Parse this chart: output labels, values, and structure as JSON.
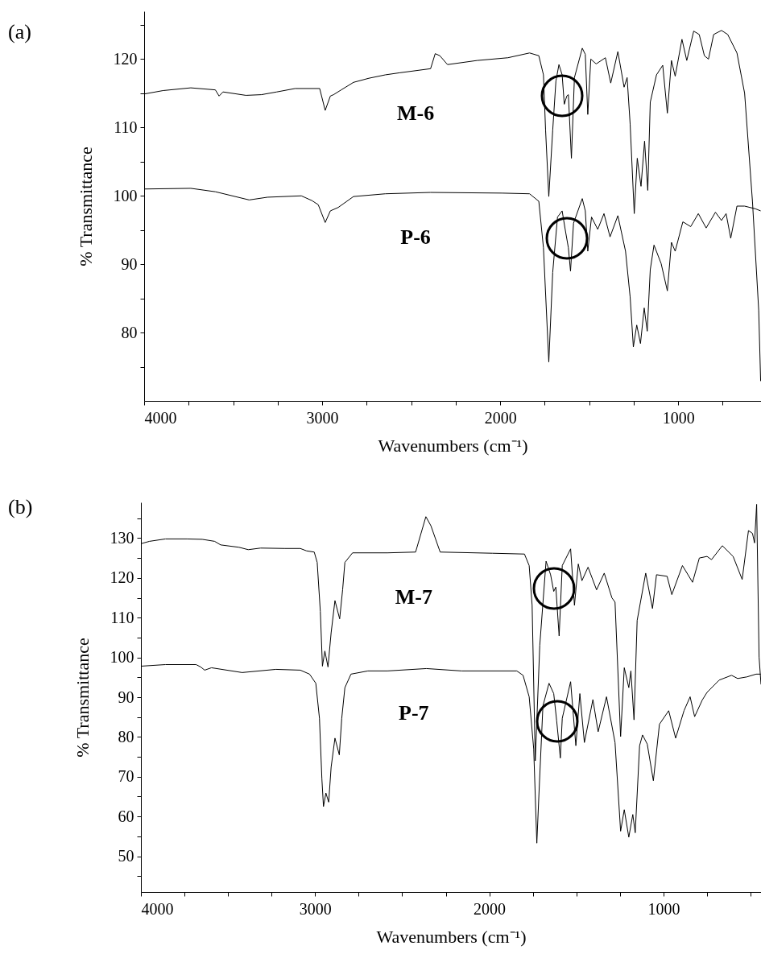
{
  "chart_data": [
    {
      "type": "line",
      "title": "(a)",
      "xlabel": "Wavenumbers (cm⁻¹)",
      "ylabel": "% Transmittance",
      "xlim": [
        4000,
        535
      ],
      "xticks": [
        4000,
        {
          "value": 3750,
          "label": null
        },
        {
          "value": 3500,
          "label": null
        },
        {
          "value": 3250,
          "label": null
        },
        3000,
        {
          "value": 2750,
          "label": null
        },
        {
          "value": 2500,
          "label": null
        },
        {
          "value": 2250,
          "label": null
        },
        2000,
        {
          "value": 1750,
          "label": null
        },
        {
          "value": 1500,
          "label": null
        },
        {
          "value": 1250,
          "label": null
        },
        1000,
        {
          "value": 750,
          "label": null
        }
      ],
      "ylim": [
        70,
        127
      ],
      "yticks": [
        {
          "value": 75,
          "label": null
        },
        80,
        {
          "value": 85,
          "label": null
        },
        90,
        {
          "value": 95,
          "label": null
        },
        100,
        {
          "value": 105,
          "label": null
        },
        110,
        {
          "value": 115,
          "label": null
        },
        120,
        {
          "value": 125,
          "label": null
        }
      ],
      "series": [
        {
          "name": "M-6",
          "color": "#000000",
          "x": [
            4000,
            3893,
            3738,
            3600,
            3579,
            3557,
            3428,
            3341,
            3255,
            3152,
            3014,
            2983,
            2954,
            2936,
            2893,
            2824,
            2738,
            2645,
            2565,
            2391,
            2365,
            2339,
            2296,
            2130,
            1957,
            1835,
            1783,
            1757,
            1745,
            1727,
            1705,
            1687,
            1670,
            1652,
            1640,
            1626,
            1617,
            1600,
            1583,
            1539,
            1522,
            1508,
            1491,
            1461,
            1409,
            1379,
            1339,
            1304,
            1287,
            1270,
            1247,
            1230,
            1209,
            1189,
            1171,
            1157,
            1122,
            1087,
            1061,
            1038,
            1017,
            979,
            952,
            913,
            882,
            853,
            830,
            801,
            757,
            722,
            670,
            627,
            583,
            548,
            537
          ],
          "values": [
            114.9,
            115.4,
            115.8,
            115.5,
            114.6,
            115.2,
            114.7,
            114.8,
            115.2,
            115.7,
            115.7,
            112.5,
            114.6,
            114.8,
            115.5,
            116.6,
            117.2,
            117.7,
            118.0,
            118.6,
            120.8,
            120.5,
            119.2,
            119.8,
            120.2,
            120.9,
            120.5,
            117.7,
            109.6,
            99.9,
            109.6,
            116.8,
            119.2,
            117.7,
            113.4,
            114.6,
            114.8,
            105.5,
            117.3,
            121.6,
            120.7,
            111.9,
            120.0,
            119.3,
            120.2,
            116.5,
            121.1,
            115.9,
            117.3,
            110.5,
            97.4,
            105.5,
            101.4,
            108.0,
            100.8,
            113.7,
            117.7,
            119.1,
            112.1,
            119.8,
            117.5,
            122.9,
            119.8,
            124.1,
            123.6,
            120.5,
            120.0,
            123.6,
            124.2,
            123.6,
            120.9,
            115.0,
            99.2,
            83.3,
            72.9
          ]
        },
        {
          "name": "P-6",
          "color": "#000000",
          "x": [
            4000,
            3738,
            3600,
            3410,
            3307,
            3117,
            3057,
            3022,
            2983,
            2954,
            2910,
            2824,
            2645,
            2391,
            1991,
            1835,
            1783,
            1757,
            1727,
            1705,
            1678,
            1652,
            1635,
            1617,
            1605,
            1588,
            1539,
            1522,
            1508,
            1487,
            1452,
            1417,
            1383,
            1339,
            1296,
            1270,
            1252,
            1233,
            1212,
            1191,
            1174,
            1157,
            1136,
            1096,
            1061,
            1038,
            1017,
            974,
            930,
            887,
            843,
            791,
            757,
            731,
            705,
            670,
            627,
            566,
            537
          ],
          "values": [
            101.0,
            101.1,
            100.6,
            99.4,
            99.8,
            100.0,
            99.3,
            98.7,
            96.1,
            97.8,
            98.3,
            99.9,
            100.3,
            100.5,
            100.4,
            100.3,
            99.2,
            92.4,
            75.7,
            88.8,
            96.9,
            97.8,
            95.1,
            92.4,
            89.0,
            96.0,
            99.6,
            97.8,
            91.9,
            96.9,
            95.1,
            97.4,
            94.0,
            97.1,
            91.9,
            85.2,
            77.9,
            81.1,
            78.4,
            83.6,
            80.2,
            89.2,
            92.8,
            90.1,
            86.1,
            93.2,
            91.9,
            96.2,
            95.5,
            97.4,
            95.3,
            97.6,
            96.4,
            97.4,
            93.8,
            98.5,
            98.5,
            98.1,
            97.8
          ]
        }
      ]
    },
    {
      "type": "line",
      "title": "(b)",
      "xlabel": "Wavenumbers (cm⁻¹)",
      "ylabel": "% Transmittance",
      "xlim": [
        4000,
        440
      ],
      "xticks": [
        4000,
        {
          "value": 3750,
          "label": null
        },
        {
          "value": 3500,
          "label": null
        },
        {
          "value": 3250,
          "label": null
        },
        3000,
        {
          "value": 2750,
          "label": null
        },
        {
          "value": 2500,
          "label": null
        },
        {
          "value": 2250,
          "label": null
        },
        2000,
        {
          "value": 1750,
          "label": null
        },
        {
          "value": 1500,
          "label": null
        },
        {
          "value": 1250,
          "label": null
        },
        1000,
        {
          "value": 750,
          "label": null
        },
        {
          "value": 500,
          "label": null
        }
      ],
      "ylim": [
        41,
        139
      ],
      "yticks": [
        {
          "value": 45,
          "label": null
        },
        50,
        {
          "value": 55,
          "label": null
        },
        60,
        {
          "value": 65,
          "label": null
        },
        70,
        {
          "value": 75,
          "label": null
        },
        80,
        {
          "value": 85,
          "label": null
        },
        90,
        {
          "value": 95,
          "label": null
        },
        100,
        {
          "value": 105,
          "label": null
        },
        110,
        {
          "value": 115,
          "label": null
        },
        120,
        {
          "value": 125,
          "label": null
        },
        130,
        {
          "value": 135,
          "label": null
        }
      ],
      "series": [
        {
          "name": "M-7",
          "color": "#000000",
          "x": [
            4000,
            3951,
            3859,
            3736,
            3648,
            3577,
            3542,
            3437,
            3384,
            3313,
            3173,
            3085,
            3049,
            3005,
            2988,
            2970,
            2958,
            2944,
            2926,
            2908,
            2886,
            2859,
            2842,
            2829,
            2785,
            2585,
            2423,
            2364,
            2335,
            2282,
            1982,
            1798,
            1771,
            1754,
            1736,
            1710,
            1674,
            1648,
            1630,
            1618,
            1599,
            1581,
            1533,
            1511,
            1489,
            1468,
            1433,
            1384,
            1340,
            1296,
            1278,
            1246,
            1225,
            1199,
            1187,
            1169,
            1151,
            1102,
            1063,
            1040,
            979,
            952,
            891,
            833,
            794,
            750,
            724,
            662,
            600,
            548,
            512,
            489,
            477,
            465,
            451,
            440
          ],
          "values": [
            128.6,
            129.2,
            129.8,
            129.8,
            129.7,
            129.2,
            128.3,
            127.7,
            127.1,
            127.5,
            127.4,
            127.4,
            126.8,
            126.5,
            123.9,
            111.6,
            97.8,
            101.6,
            97.6,
            106.2,
            114.3,
            109.7,
            117.0,
            123.9,
            126.3,
            126.3,
            126.5,
            135.4,
            133.1,
            126.5,
            126.2,
            126.0,
            123.1,
            113.1,
            74.0,
            103.1,
            124.2,
            120.8,
            116.6,
            117.7,
            105.4,
            123.1,
            127.3,
            113.1,
            123.5,
            119.3,
            122.7,
            117.0,
            121.2,
            115.0,
            113.9,
            80.1,
            97.4,
            92.4,
            96.6,
            84.3,
            109.3,
            121.2,
            112.3,
            120.8,
            120.4,
            115.8,
            123.1,
            118.9,
            125.0,
            125.4,
            124.6,
            128.1,
            125.4,
            119.6,
            131.9,
            131.2,
            128.8,
            138.5,
            100.1,
            93.2
          ]
        },
        {
          "name": "P-7",
          "color": "#000000",
          "x": [
            4000,
            3859,
            3683,
            3657,
            3634,
            3595,
            3419,
            3225,
            3085,
            3032,
            2996,
            2975,
            2961,
            2952,
            2938,
            2922,
            2908,
            2886,
            2861,
            2847,
            2829,
            2794,
            2697,
            2585,
            2361,
            2158,
            1842,
            1806,
            1771,
            1745,
            1727,
            1715,
            1692,
            1657,
            1630,
            1613,
            1592,
            1581,
            1533,
            1503,
            1480,
            1454,
            1405,
            1375,
            1327,
            1278,
            1246,
            1225,
            1199,
            1176,
            1162,
            1137,
            1120,
            1093,
            1058,
            1023,
            970,
            930,
            882,
            847,
            821,
            777,
            750,
            680,
            609,
            574,
            521,
            468,
            442
          ],
          "values": [
            97.8,
            98.2,
            98.2,
            97.6,
            96.8,
            97.4,
            96.2,
            97.0,
            96.8,
            95.8,
            93.5,
            84.7,
            69.4,
            62.5,
            65.9,
            63.6,
            72.4,
            79.7,
            75.5,
            84.7,
            92.4,
            95.8,
            96.6,
            96.6,
            97.2,
            96.6,
            96.6,
            95.5,
            90.1,
            77.0,
            53.3,
            65.5,
            87.8,
            93.5,
            90.9,
            84.0,
            74.7,
            84.7,
            93.9,
            77.8,
            90.9,
            78.6,
            89.4,
            81.3,
            90.1,
            78.6,
            56.3,
            61.7,
            54.8,
            60.5,
            55.9,
            77.8,
            80.5,
            78.2,
            69.0,
            83.2,
            86.6,
            79.7,
            86.6,
            90.1,
            85.1,
            89.3,
            91.2,
            94.3,
            95.5,
            94.7,
            95.1,
            95.8,
            95.8
          ]
        }
      ]
    }
  ]
}
